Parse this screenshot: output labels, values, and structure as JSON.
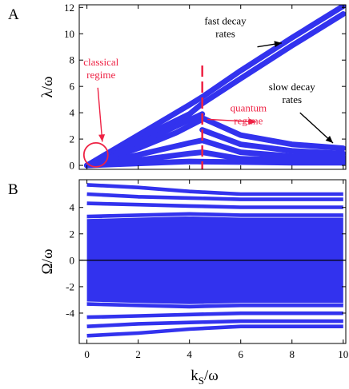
{
  "colors": {
    "band": "#3232ee",
    "annotation_red": "#ee2244",
    "annotation_black": "#000000",
    "axis": "#000000",
    "zero_line": "#000000"
  },
  "chart_data": [
    {
      "panel_letter": "A",
      "type": "line",
      "ylabel": "λ/ω",
      "xlim": [
        -0.3,
        10.1
      ],
      "ylim": [
        -0.3,
        12.2
      ],
      "xticks": [
        0,
        2,
        4,
        6,
        8,
        10
      ],
      "yticks": [
        0,
        2,
        4,
        6,
        8,
        10,
        12
      ],
      "grid": false,
      "series": [
        {
          "x": [
            0,
            2,
            4,
            4.5,
            6,
            8,
            10
          ],
          "y": [
            0.0,
            2.0,
            3.9,
            4.7,
            6.6,
            9.1,
            11.5
          ]
        },
        {
          "x": [
            0,
            2,
            4,
            4.5,
            6,
            8,
            10
          ],
          "y": [
            0.0,
            2.3,
            4.6,
            5.2,
            7.2,
            9.7,
            12.1
          ]
        },
        {
          "x": [
            0,
            2,
            3.5,
            4.5
          ],
          "y": [
            0.0,
            1.6,
            3.0,
            3.9
          ]
        },
        {
          "x": [
            0,
            2,
            3.5,
            4.5
          ],
          "y": [
            0.0,
            1.3,
            2.5,
            3.5
          ]
        },
        {
          "x": [
            4.5,
            6,
            8,
            10
          ],
          "y": [
            3.6,
            2.3,
            1.6,
            1.3
          ]
        },
        {
          "x": [
            4.5,
            6,
            8,
            10
          ],
          "y": [
            2.7,
            1.6,
            1.1,
            0.9
          ]
        },
        {
          "x": [
            0,
            2,
            4,
            4.5,
            6,
            8,
            10
          ],
          "y": [
            0.0,
            0.8,
            1.7,
            1.9,
            1.0,
            0.7,
            0.6
          ]
        },
        {
          "x": [
            0,
            2,
            4,
            4.5,
            6,
            8,
            10
          ],
          "y": [
            0.0,
            0.4,
            0.9,
            1.0,
            0.5,
            0.4,
            0.4
          ]
        },
        {
          "x": [
            0,
            2,
            4,
            6,
            8,
            10
          ],
          "y": [
            0.0,
            0.15,
            0.3,
            0.25,
            0.2,
            0.2
          ]
        }
      ],
      "markers": [
        {
          "kind": "vline",
          "x": 4.5,
          "style": "dashed",
          "color": "#ee2244"
        },
        {
          "kind": "circle",
          "x": 0.35,
          "y": 0.8,
          "color": "#ee2244"
        }
      ],
      "annotations": [
        {
          "lines": [
            "fast decay",
            "rates"
          ],
          "text_x": 5.4,
          "text_y": 10.7,
          "color": "#000000",
          "arrow_to": [
            7.6,
            9.3
          ]
        },
        {
          "lines": [
            "classical",
            "regime"
          ],
          "text_x": 0.55,
          "text_y": 7.6,
          "color": "#ee2244",
          "arrow_to": [
            0.6,
            1.8
          ]
        },
        {
          "lines": [
            "quantum",
            "regime"
          ],
          "text_x": 6.3,
          "text_y": 4.1,
          "color": "#ee2244",
          "arrow_from": [
            4.7,
            3.5
          ],
          "arrow_to": [
            6.6,
            3.3
          ]
        },
        {
          "lines": [
            "slow decay",
            "rates"
          ],
          "text_x": 8.0,
          "text_y": 5.7,
          "color": "#000000",
          "arrow_to": [
            9.6,
            1.7
          ]
        }
      ]
    },
    {
      "panel_letter": "B",
      "type": "scatter",
      "xlabel": "k",
      "xlabel_sub": "S",
      "xlabel_tail": "/ω",
      "ylabel": "Ω/ω",
      "xlim": [
        -0.3,
        10.1
      ],
      "ylim": [
        -6.3,
        6.1
      ],
      "xticks": [
        0,
        2,
        4,
        6,
        8,
        10
      ],
      "yticks": [
        -4,
        -2,
        0,
        2,
        4
      ],
      "grid": false,
      "zero_line": 0,
      "series": [
        {
          "x": [
            0,
            2,
            4,
            6,
            8,
            10
          ],
          "y": [
            5.7,
            5.5,
            5.2,
            5.0,
            5.0,
            5.0
          ]
        },
        {
          "x": [
            0,
            2,
            4,
            6,
            8,
            10
          ],
          "y": [
            5.0,
            4.8,
            4.7,
            4.6,
            4.6,
            4.6
          ]
        },
        {
          "x": [
            0,
            2,
            4,
            6,
            8,
            10
          ],
          "y": [
            4.3,
            4.2,
            4.1,
            4.0,
            4.0,
            4.0
          ]
        },
        {
          "x": [
            0,
            2,
            4,
            6,
            8,
            10
          ],
          "y": [
            3.3,
            3.4,
            3.5,
            3.4,
            3.4,
            3.4
          ]
        },
        {
          "x": [
            0,
            2,
            4,
            6,
            8,
            10
          ],
          "y": [
            -3.3,
            -3.4,
            -3.5,
            -3.4,
            -3.4,
            -3.4
          ]
        },
        {
          "x": [
            0,
            2,
            4,
            6,
            8,
            10
          ],
          "y": [
            -4.3,
            -4.2,
            -4.1,
            -4.0,
            -4.0,
            -4.0
          ]
        },
        {
          "x": [
            0,
            2,
            4,
            6,
            8,
            10
          ],
          "y": [
            -5.0,
            -4.8,
            -4.7,
            -4.6,
            -4.6,
            -4.6
          ]
        },
        {
          "x": [
            0,
            2,
            4,
            6,
            8,
            10
          ],
          "y": [
            -5.7,
            -5.5,
            -5.2,
            -5.0,
            -5.0,
            -5.0
          ]
        }
      ]
    }
  ]
}
